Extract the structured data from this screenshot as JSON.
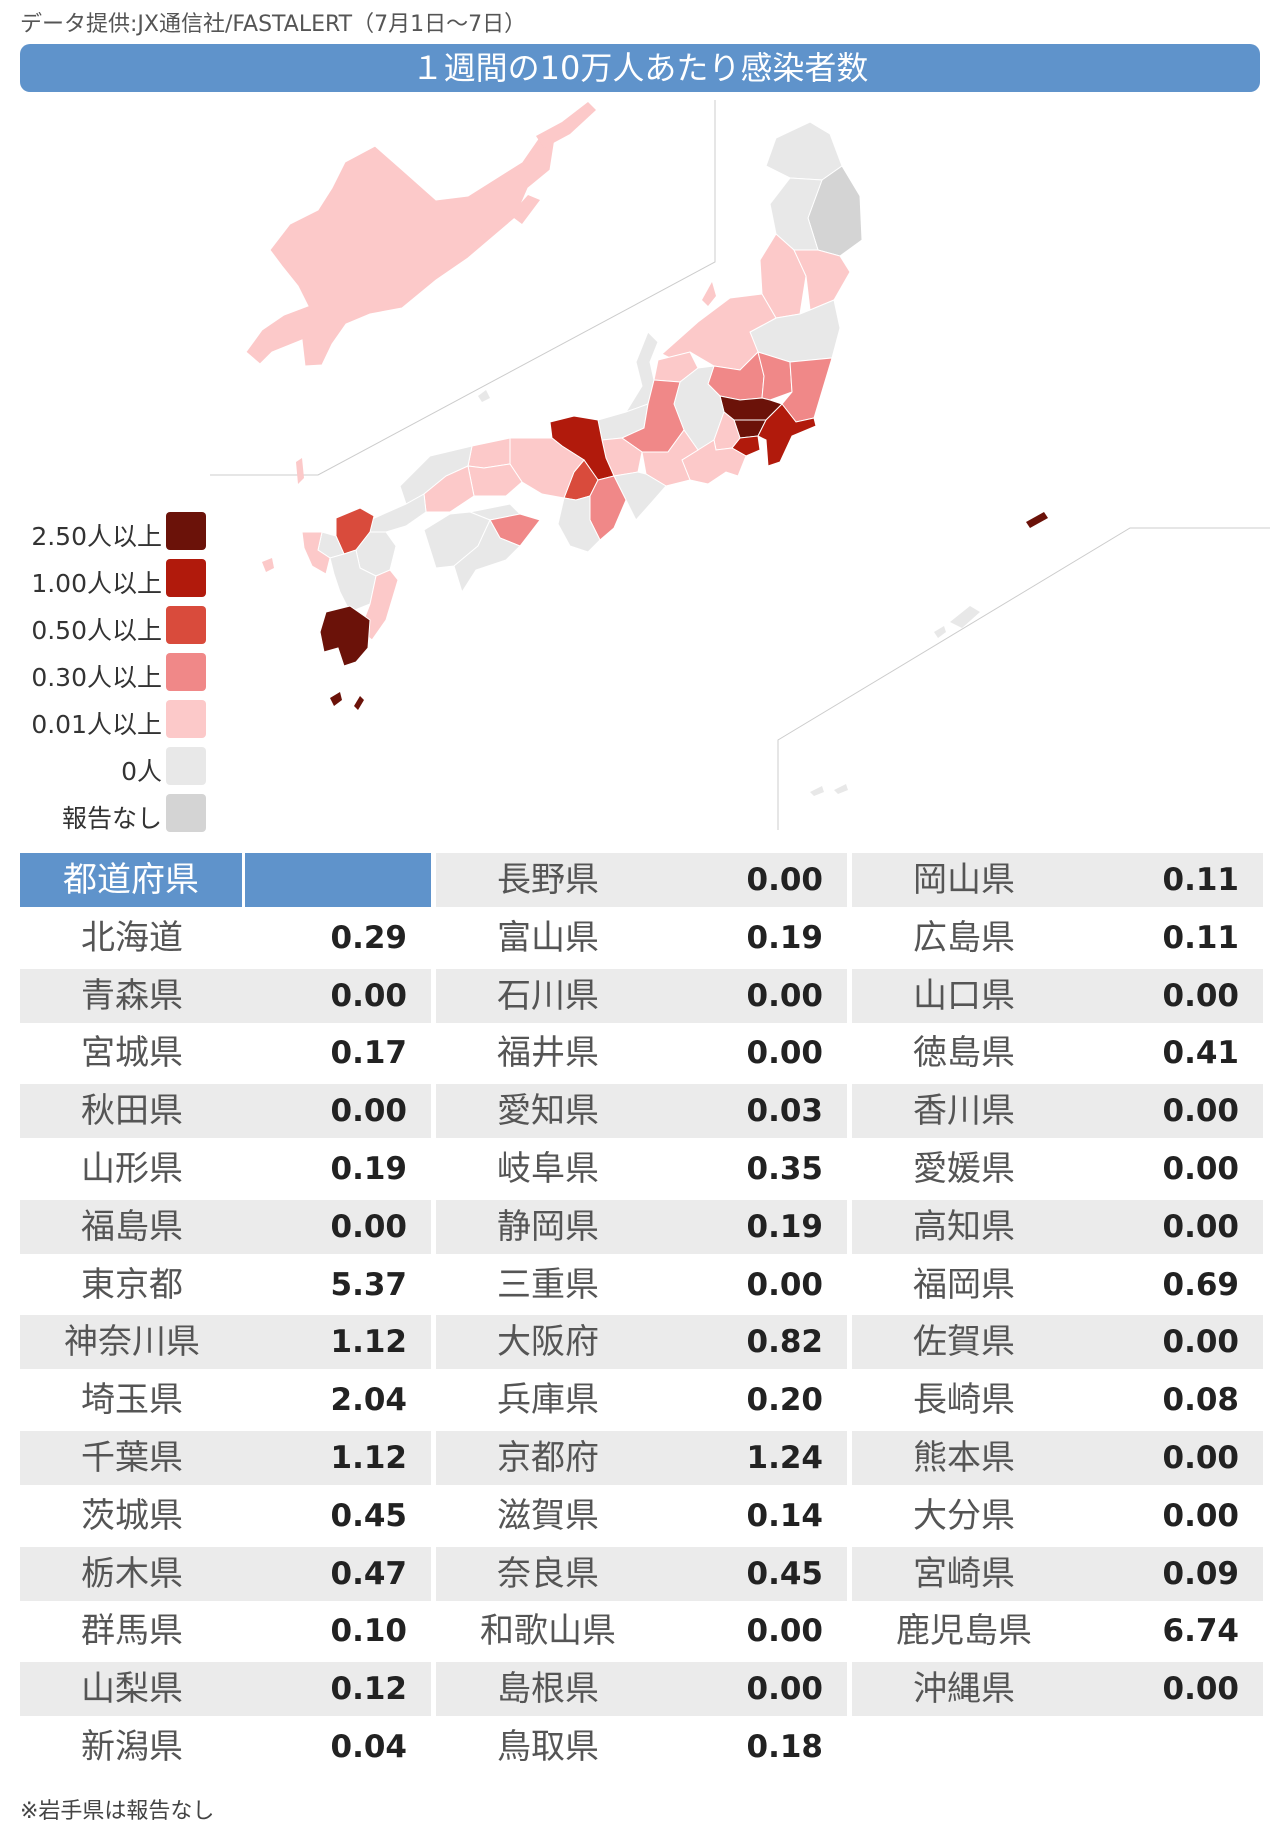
{
  "source": "データ提供:JX通信社/FASTALERT（7月1日〜7日）",
  "title": "１週間の10万人あたり感染者数",
  "legend": [
    {
      "label": "2.50人以上",
      "color": "#6b1209"
    },
    {
      "label": "1.00人以上",
      "color": "#b11a0c"
    },
    {
      "label": "0.50人以上",
      "color": "#d94b3c"
    },
    {
      "label": "0.30人以上",
      "color": "#f08888"
    },
    {
      "label": "0.01人以上",
      "color": "#fcc9c9"
    },
    {
      "label": "0人",
      "color": "#e8e8e8"
    },
    {
      "label": "報告なし",
      "color": "#d4d4d4"
    }
  ],
  "table_header": "都道府県",
  "note": "※岩手県は報告なし",
  "chart_data": {
    "type": "table",
    "title": "１週間の10万人あたり感染者数",
    "columns": [
      "都道府県",
      ""
    ],
    "rows": [
      [
        "北海道",
        "0.29"
      ],
      [
        "青森県",
        "0.00"
      ],
      [
        "宮城県",
        "0.17"
      ],
      [
        "秋田県",
        "0.00"
      ],
      [
        "山形県",
        "0.19"
      ],
      [
        "福島県",
        "0.00"
      ],
      [
        "東京都",
        "5.37"
      ],
      [
        "神奈川県",
        "1.12"
      ],
      [
        "埼玉県",
        "2.04"
      ],
      [
        "千葉県",
        "1.12"
      ],
      [
        "茨城県",
        "0.45"
      ],
      [
        "栃木県",
        "0.47"
      ],
      [
        "群馬県",
        "0.10"
      ],
      [
        "山梨県",
        "0.12"
      ],
      [
        "新潟県",
        "0.04"
      ],
      [
        "長野県",
        "0.00"
      ],
      [
        "富山県",
        "0.19"
      ],
      [
        "石川県",
        "0.00"
      ],
      [
        "福井県",
        "0.00"
      ],
      [
        "愛知県",
        "0.03"
      ],
      [
        "岐阜県",
        "0.35"
      ],
      [
        "静岡県",
        "0.19"
      ],
      [
        "三重県",
        "0.00"
      ],
      [
        "大阪府",
        "0.82"
      ],
      [
        "兵庫県",
        "0.20"
      ],
      [
        "京都府",
        "1.24"
      ],
      [
        "滋賀県",
        "0.14"
      ],
      [
        "奈良県",
        "0.45"
      ],
      [
        "和歌山県",
        "0.00"
      ],
      [
        "島根県",
        "0.00"
      ],
      [
        "鳥取県",
        "0.18"
      ],
      [
        "岡山県",
        "0.11"
      ],
      [
        "広島県",
        "0.11"
      ],
      [
        "山口県",
        "0.00"
      ],
      [
        "徳島県",
        "0.41"
      ],
      [
        "香川県",
        "0.00"
      ],
      [
        "愛媛県",
        "0.00"
      ],
      [
        "高知県",
        "0.00"
      ],
      [
        "福岡県",
        "0.69"
      ],
      [
        "佐賀県",
        "0.00"
      ],
      [
        "長崎県",
        "0.08"
      ],
      [
        "熊本県",
        "0.00"
      ],
      [
        "大分県",
        "0.00"
      ],
      [
        "宮崎県",
        "0.09"
      ],
      [
        "鹿児島県",
        "6.74"
      ],
      [
        "沖縄県",
        "0.00"
      ]
    ]
  }
}
